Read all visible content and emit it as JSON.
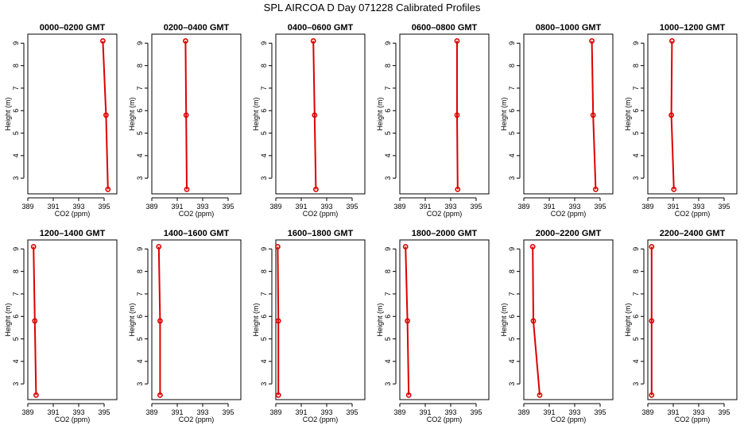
{
  "title": "SPL AIRCOA D  Day 071228  Calibrated Profiles",
  "colors": {
    "profile": "#dd0000",
    "frame": "#000000"
  },
  "chart_data": [
    {
      "type": "line",
      "title": "0000–0200 GMT",
      "xlabel": "CO2 (ppm)",
      "ylabel": "Height (m)",
      "xlim": [
        389,
        396
      ],
      "ylim": [
        2.3,
        9.4
      ],
      "xticks": [
        389,
        391,
        393,
        395
      ],
      "yticks": [
        3,
        4,
        5,
        6,
        7,
        8,
        9
      ],
      "points": [
        {
          "x": 395.3,
          "y": 2.5
        },
        {
          "x": 395.15,
          "y": 5.8
        },
        {
          "x": 394.9,
          "y": 9.1
        }
      ]
    },
    {
      "type": "line",
      "title": "0200–0400 GMT",
      "xlabel": "CO2 (ppm)",
      "ylabel": "Height (m)",
      "xlim": [
        389,
        396
      ],
      "ylim": [
        2.3,
        9.4
      ],
      "xticks": [
        389,
        391,
        393,
        395
      ],
      "yticks": [
        3,
        4,
        5,
        6,
        7,
        8,
        9
      ],
      "points": [
        {
          "x": 391.75,
          "y": 2.5
        },
        {
          "x": 391.7,
          "y": 5.8
        },
        {
          "x": 391.65,
          "y": 9.1
        }
      ]
    },
    {
      "type": "line",
      "title": "0400–0600 GMT",
      "xlabel": "CO2 (ppm)",
      "ylabel": "Height (m)",
      "xlim": [
        389,
        396
      ],
      "ylim": [
        2.3,
        9.4
      ],
      "xticks": [
        389,
        391,
        393,
        395
      ],
      "yticks": [
        3,
        4,
        5,
        6,
        7,
        8,
        9
      ],
      "points": [
        {
          "x": 392.15,
          "y": 2.5
        },
        {
          "x": 392.05,
          "y": 5.8
        },
        {
          "x": 391.95,
          "y": 9.1
        }
      ]
    },
    {
      "type": "line",
      "title": "0600–0800 GMT",
      "xlabel": "CO2 (ppm)",
      "ylabel": "Height (m)",
      "xlim": [
        389,
        396
      ],
      "ylim": [
        2.3,
        9.4
      ],
      "xticks": [
        389,
        391,
        393,
        395
      ],
      "yticks": [
        3,
        4,
        5,
        6,
        7,
        8,
        9
      ],
      "points": [
        {
          "x": 393.55,
          "y": 2.5
        },
        {
          "x": 393.5,
          "y": 5.8
        },
        {
          "x": 393.5,
          "y": 9.1
        }
      ]
    },
    {
      "type": "line",
      "title": "0800–1000 GMT",
      "xlabel": "CO2 (ppm)",
      "ylabel": "Height (m)",
      "xlim": [
        389,
        396
      ],
      "ylim": [
        2.3,
        9.4
      ],
      "xticks": [
        389,
        391,
        393,
        395
      ],
      "yticks": [
        3,
        4,
        5,
        6,
        7,
        8,
        9
      ],
      "points": [
        {
          "x": 394.65,
          "y": 2.5
        },
        {
          "x": 394.45,
          "y": 5.8
        },
        {
          "x": 394.35,
          "y": 9.1
        }
      ]
    },
    {
      "type": "line",
      "title": "1000–1200 GMT",
      "xlabel": "CO2 (ppm)",
      "ylabel": "Height (m)",
      "xlim": [
        389,
        396
      ],
      "ylim": [
        2.3,
        9.4
      ],
      "xticks": [
        389,
        391,
        393,
        395
      ],
      "yticks": [
        3,
        4,
        5,
        6,
        7,
        8,
        9
      ],
      "points": [
        {
          "x": 391.05,
          "y": 2.5
        },
        {
          "x": 390.85,
          "y": 5.8
        },
        {
          "x": 390.9,
          "y": 9.1
        }
      ]
    },
    {
      "type": "line",
      "title": "1200–1400 GMT",
      "xlabel": "CO2 (ppm)",
      "ylabel": "Height (m)",
      "xlim": [
        389,
        396
      ],
      "ylim": [
        2.3,
        9.4
      ],
      "xticks": [
        389,
        391,
        393,
        395
      ],
      "yticks": [
        3,
        4,
        5,
        6,
        7,
        8,
        9
      ],
      "points": [
        {
          "x": 389.65,
          "y": 2.5
        },
        {
          "x": 389.55,
          "y": 5.8
        },
        {
          "x": 389.45,
          "y": 9.1
        }
      ]
    },
    {
      "type": "line",
      "title": "1400–1600 GMT",
      "xlabel": "CO2 (ppm)",
      "ylabel": "Height (m)",
      "xlim": [
        389,
        396
      ],
      "ylim": [
        2.3,
        9.4
      ],
      "xticks": [
        389,
        391,
        393,
        395
      ],
      "yticks": [
        3,
        4,
        5,
        6,
        7,
        8,
        9
      ],
      "points": [
        {
          "x": 389.65,
          "y": 2.5
        },
        {
          "x": 389.65,
          "y": 5.8
        },
        {
          "x": 389.55,
          "y": 9.1
        }
      ]
    },
    {
      "type": "line",
      "title": "1600–1800 GMT",
      "xlabel": "CO2 (ppm)",
      "ylabel": "Height (m)",
      "xlim": [
        389,
        396
      ],
      "ylim": [
        2.3,
        9.4
      ],
      "xticks": [
        389,
        391,
        393,
        395
      ],
      "yticks": [
        3,
        4,
        5,
        6,
        7,
        8,
        9
      ],
      "points": [
        {
          "x": 389.2,
          "y": 2.5
        },
        {
          "x": 389.2,
          "y": 5.8
        },
        {
          "x": 389.15,
          "y": 9.1
        }
      ]
    },
    {
      "type": "line",
      "title": "1800–2000 GMT",
      "xlabel": "CO2 (ppm)",
      "ylabel": "Height (m)",
      "xlim": [
        389,
        396
      ],
      "ylim": [
        2.3,
        9.4
      ],
      "xticks": [
        389,
        391,
        393,
        395
      ],
      "yticks": [
        3,
        4,
        5,
        6,
        7,
        8,
        9
      ],
      "points": [
        {
          "x": 389.7,
          "y": 2.5
        },
        {
          "x": 389.6,
          "y": 5.8
        },
        {
          "x": 389.45,
          "y": 9.1
        }
      ]
    },
    {
      "type": "line",
      "title": "2000–2200 GMT",
      "xlabel": "CO2 (ppm)",
      "ylabel": "Height (m)",
      "xlim": [
        389,
        396
      ],
      "ylim": [
        2.3,
        9.4
      ],
      "xticks": [
        389,
        391,
        393,
        395
      ],
      "yticks": [
        3,
        4,
        5,
        6,
        7,
        8,
        9
      ],
      "points": [
        {
          "x": 390.25,
          "y": 2.5
        },
        {
          "x": 389.75,
          "y": 5.8
        },
        {
          "x": 389.7,
          "y": 9.1
        }
      ]
    },
    {
      "type": "line",
      "title": "2200–2400 GMT",
      "xlabel": "CO2 (ppm)",
      "ylabel": "Height (m)",
      "xlim": [
        389,
        396
      ],
      "ylim": [
        2.3,
        9.4
      ],
      "xticks": [
        389,
        391,
        393,
        395
      ],
      "yticks": [
        3,
        4,
        5,
        6,
        7,
        8,
        9
      ],
      "points": [
        {
          "x": 389.3,
          "y": 2.5
        },
        {
          "x": 389.3,
          "y": 5.8
        },
        {
          "x": 389.3,
          "y": 9.1
        }
      ]
    }
  ]
}
